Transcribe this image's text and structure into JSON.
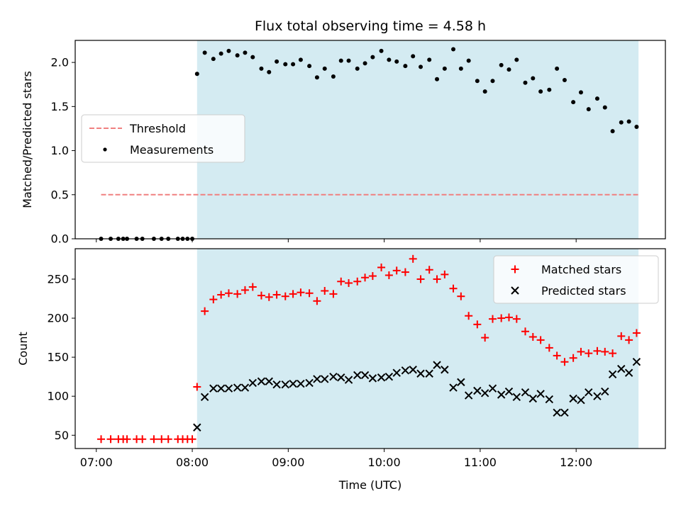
{
  "chart_data": [
    {
      "type": "scatter",
      "title": "Flux total observing time = 4.58 h",
      "ylabel": "Matched/Predicted stars",
      "ylim": [
        0,
        2.25
      ],
      "y_ticks": [
        "0.0",
        "0.5",
        "1.0",
        "1.5",
        "2.0"
      ],
      "y_tick_values": [
        0,
        0.5,
        1.0,
        1.5,
        2.0
      ],
      "xlim_hours": [
        6.78,
        12.93
      ],
      "highlight_span_hours": [
        8.05,
        12.65
      ],
      "highlight_color": "#add8e6",
      "threshold": {
        "name": "Threshold",
        "value": 0.5,
        "x_range_hours": [
          7.05,
          12.65
        ],
        "color": "#f08080"
      },
      "legend": {
        "placement": "center-left",
        "entries": [
          "Threshold",
          "Measurements"
        ]
      },
      "series": [
        {
          "name": "Measurements",
          "color": "#000000",
          "points": [
            [
              7.05,
              0
            ],
            [
              7.15,
              0
            ],
            [
              7.23,
              0
            ],
            [
              7.28,
              0
            ],
            [
              7.32,
              0
            ],
            [
              7.42,
              0
            ],
            [
              7.48,
              0
            ],
            [
              7.6,
              0
            ],
            [
              7.68,
              0
            ],
            [
              7.75,
              0
            ],
            [
              7.85,
              0
            ],
            [
              7.9,
              0
            ],
            [
              7.95,
              0
            ],
            [
              8.0,
              0
            ],
            [
              8.05,
              1.87
            ],
            [
              8.13,
              2.11
            ],
            [
              8.22,
              2.04
            ],
            [
              8.3,
              2.1
            ],
            [
              8.38,
              2.13
            ],
            [
              8.47,
              2.08
            ],
            [
              8.55,
              2.11
            ],
            [
              8.63,
              2.06
            ],
            [
              8.72,
              1.93
            ],
            [
              8.8,
              1.89
            ],
            [
              8.88,
              2.01
            ],
            [
              8.97,
              1.98
            ],
            [
              9.05,
              1.98
            ],
            [
              9.13,
              2.03
            ],
            [
              9.22,
              1.96
            ],
            [
              9.3,
              1.83
            ],
            [
              9.38,
              1.93
            ],
            [
              9.47,
              1.84
            ],
            [
              9.55,
              2.02
            ],
            [
              9.63,
              2.02
            ],
            [
              9.72,
              1.93
            ],
            [
              9.8,
              1.99
            ],
            [
              9.88,
              2.06
            ],
            [
              9.97,
              2.13
            ],
            [
              10.05,
              2.03
            ],
            [
              10.13,
              2.01
            ],
            [
              10.22,
              1.96
            ],
            [
              10.3,
              2.07
            ],
            [
              10.38,
              1.95
            ],
            [
              10.47,
              2.03
            ],
            [
              10.55,
              1.81
            ],
            [
              10.63,
              1.93
            ],
            [
              10.72,
              2.15
            ],
            [
              10.8,
              1.93
            ],
            [
              10.88,
              2.02
            ],
            [
              10.97,
              1.79
            ],
            [
              11.05,
              1.67
            ],
            [
              11.13,
              1.79
            ],
            [
              11.22,
              1.97
            ],
            [
              11.3,
              1.92
            ],
            [
              11.38,
              2.03
            ],
            [
              11.47,
              1.77
            ],
            [
              11.55,
              1.82
            ],
            [
              11.63,
              1.67
            ],
            [
              11.72,
              1.69
            ],
            [
              11.8,
              1.93
            ],
            [
              11.88,
              1.8
            ],
            [
              11.97,
              1.55
            ],
            [
              12.05,
              1.66
            ],
            [
              12.13,
              1.47
            ],
            [
              12.22,
              1.59
            ],
            [
              12.3,
              1.49
            ],
            [
              12.38,
              1.22
            ],
            [
              12.47,
              1.32
            ],
            [
              12.55,
              1.33
            ],
            [
              12.63,
              1.27
            ]
          ]
        }
      ]
    },
    {
      "type": "scatter",
      "xlabel": "Time (UTC)",
      "ylabel": "Count",
      "ylim": [
        33,
        289
      ],
      "y_ticks": [
        "50",
        "100",
        "150",
        "200",
        "250"
      ],
      "y_tick_values": [
        50,
        100,
        150,
        200,
        250
      ],
      "x_ticks": [
        "07:00",
        "08:00",
        "09:00",
        "10:00",
        "11:00",
        "12:00"
      ],
      "x_tick_values_hours": [
        7,
        8,
        9,
        10,
        11,
        12
      ],
      "xlim_hours": [
        6.78,
        12.93
      ],
      "highlight_span_hours": [
        8.05,
        12.65
      ],
      "legend": {
        "placement": "top-right",
        "entries": [
          "Matched stars",
          "Predicted stars"
        ]
      },
      "series": [
        {
          "name": "Matched stars",
          "marker": "plus",
          "color": "#ff0000",
          "points": [
            [
              7.05,
              45
            ],
            [
              7.15,
              45
            ],
            [
              7.23,
              45
            ],
            [
              7.28,
              45
            ],
            [
              7.32,
              45
            ],
            [
              7.42,
              45
            ],
            [
              7.48,
              45
            ],
            [
              7.6,
              45
            ],
            [
              7.68,
              45
            ],
            [
              7.75,
              45
            ],
            [
              7.85,
              45
            ],
            [
              7.9,
              45
            ],
            [
              7.95,
              45
            ],
            [
              8.0,
              45
            ],
            [
              8.05,
              112
            ],
            [
              8.13,
              209
            ],
            [
              8.22,
              224
            ],
            [
              8.3,
              230
            ],
            [
              8.38,
              232
            ],
            [
              8.47,
              231
            ],
            [
              8.55,
              236
            ],
            [
              8.63,
              240
            ],
            [
              8.72,
              229
            ],
            [
              8.8,
              227
            ],
            [
              8.88,
              230
            ],
            [
              8.97,
              228
            ],
            [
              9.05,
              231
            ],
            [
              9.13,
              233
            ],
            [
              9.22,
              232
            ],
            [
              9.3,
              222
            ],
            [
              9.38,
              235
            ],
            [
              9.47,
              231
            ],
            [
              9.55,
              247
            ],
            [
              9.63,
              245
            ],
            [
              9.72,
              247
            ],
            [
              9.8,
              252
            ],
            [
              9.88,
              254
            ],
            [
              9.97,
              265
            ],
            [
              10.05,
              255
            ],
            [
              10.13,
              261
            ],
            [
              10.22,
              259
            ],
            [
              10.3,
              276
            ],
            [
              10.38,
              250
            ],
            [
              10.47,
              262
            ],
            [
              10.55,
              250
            ],
            [
              10.63,
              256
            ],
            [
              10.72,
              238
            ],
            [
              10.8,
              228
            ],
            [
              10.88,
              203
            ],
            [
              10.97,
              192
            ],
            [
              11.05,
              175
            ],
            [
              11.13,
              199
            ],
            [
              11.22,
              200
            ],
            [
              11.3,
              201
            ],
            [
              11.38,
              199
            ],
            [
              11.47,
              183
            ],
            [
              11.55,
              176
            ],
            [
              11.63,
              172
            ],
            [
              11.72,
              162
            ],
            [
              11.8,
              152
            ],
            [
              11.88,
              144
            ],
            [
              11.97,
              149
            ],
            [
              12.05,
              157
            ],
            [
              12.13,
              155
            ],
            [
              12.22,
              158
            ],
            [
              12.3,
              157
            ],
            [
              12.38,
              155
            ],
            [
              12.47,
              177
            ],
            [
              12.55,
              172
            ],
            [
              12.63,
              181
            ]
          ]
        },
        {
          "name": "Predicted stars",
          "marker": "x",
          "color": "#000000",
          "points": [
            [
              8.05,
              60
            ],
            [
              8.13,
              99
            ],
            [
              8.22,
              110
            ],
            [
              8.3,
              110
            ],
            [
              8.38,
              110
            ],
            [
              8.47,
              111
            ],
            [
              8.55,
              111
            ],
            [
              8.63,
              117
            ],
            [
              8.72,
              119
            ],
            [
              8.8,
              119
            ],
            [
              8.88,
              115
            ],
            [
              8.97,
              115
            ],
            [
              9.05,
              116
            ],
            [
              9.13,
              116
            ],
            [
              9.22,
              117
            ],
            [
              9.3,
              122
            ],
            [
              9.38,
              122
            ],
            [
              9.47,
              125
            ],
            [
              9.55,
              124
            ],
            [
              9.63,
              121
            ],
            [
              9.72,
              127
            ],
            [
              9.8,
              127
            ],
            [
              9.88,
              123
            ],
            [
              9.97,
              124
            ],
            [
              10.05,
              125
            ],
            [
              10.13,
              130
            ],
            [
              10.22,
              133
            ],
            [
              10.3,
              134
            ],
            [
              10.38,
              129
            ],
            [
              10.47,
              129
            ],
            [
              10.55,
              140
            ],
            [
              10.63,
              134
            ],
            [
              10.72,
              111
            ],
            [
              10.8,
              118
            ],
            [
              10.88,
              101
            ],
            [
              10.97,
              107
            ],
            [
              11.05,
              104
            ],
            [
              11.13,
              110
            ],
            [
              11.22,
              102
            ],
            [
              11.3,
              106
            ],
            [
              11.38,
              99
            ],
            [
              11.47,
              105
            ],
            [
              11.55,
              97
            ],
            [
              11.63,
              103
            ],
            [
              11.72,
              96
            ],
            [
              11.8,
              79
            ],
            [
              11.88,
              79
            ],
            [
              11.97,
              97
            ],
            [
              12.05,
              95
            ],
            [
              12.13,
              105
            ],
            [
              12.22,
              100
            ],
            [
              12.3,
              106
            ],
            [
              12.38,
              128
            ],
            [
              12.47,
              135
            ],
            [
              12.55,
              130
            ],
            [
              12.63,
              144
            ]
          ]
        }
      ]
    }
  ]
}
